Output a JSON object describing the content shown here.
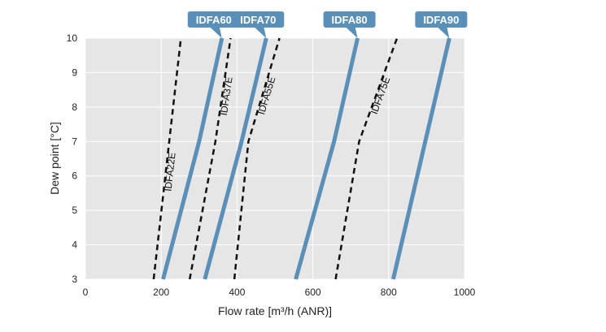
{
  "chart_data": {
    "type": "line",
    "xlabel": "Flow rate [m³/h (ANR)]",
    "ylabel": "Dew point [°C]",
    "xlim": [
      0,
      1000
    ],
    "ylim": [
      3,
      10
    ],
    "xticks": [
      0,
      200,
      400,
      600,
      800,
      1000
    ],
    "yticks": [
      3,
      4,
      5,
      6,
      7,
      8,
      9,
      10
    ],
    "grid": true,
    "colors": {
      "solid": "#5a8fb8",
      "dashed": "#111111",
      "plot_bg": "#e6e6e6",
      "grid": "#ffffff"
    },
    "series": [
      {
        "name": "IDFA22E",
        "style": "dashed",
        "tagged": false,
        "points": [
          [
            180,
            3
          ],
          [
            252,
            10
          ]
        ]
      },
      {
        "name": "IDFA60",
        "style": "solid",
        "tagged": true,
        "points": [
          [
            205,
            3
          ],
          [
            300,
            7
          ],
          [
            360,
            10
          ]
        ]
      },
      {
        "name": "IDFA37E",
        "style": "dashed",
        "tagged": false,
        "points": [
          [
            275,
            3
          ],
          [
            343,
            7
          ],
          [
            383,
            10
          ]
        ]
      },
      {
        "name": "IDFA70",
        "style": "solid",
        "tagged": true,
        "points": [
          [
            315,
            3
          ],
          [
            412,
            7
          ],
          [
            477,
            10
          ]
        ]
      },
      {
        "name": "IDFA55E",
        "style": "dashed",
        "tagged": false,
        "points": [
          [
            393,
            3
          ],
          [
            430,
            7
          ],
          [
            512,
            10
          ]
        ]
      },
      {
        "name": "IDFA80",
        "style": "solid",
        "tagged": true,
        "points": [
          [
            555,
            3
          ],
          [
            656,
            7
          ],
          [
            718,
            10
          ]
        ]
      },
      {
        "name": "IDFA75E",
        "style": "dashed",
        "tagged": false,
        "points": [
          [
            660,
            3
          ],
          [
            722,
            7
          ],
          [
            822,
            10
          ]
        ]
      },
      {
        "name": "IDFA90",
        "style": "solid",
        "tagged": true,
        "points": [
          [
            812,
            3
          ],
          [
            960,
            10
          ]
        ]
      }
    ]
  }
}
